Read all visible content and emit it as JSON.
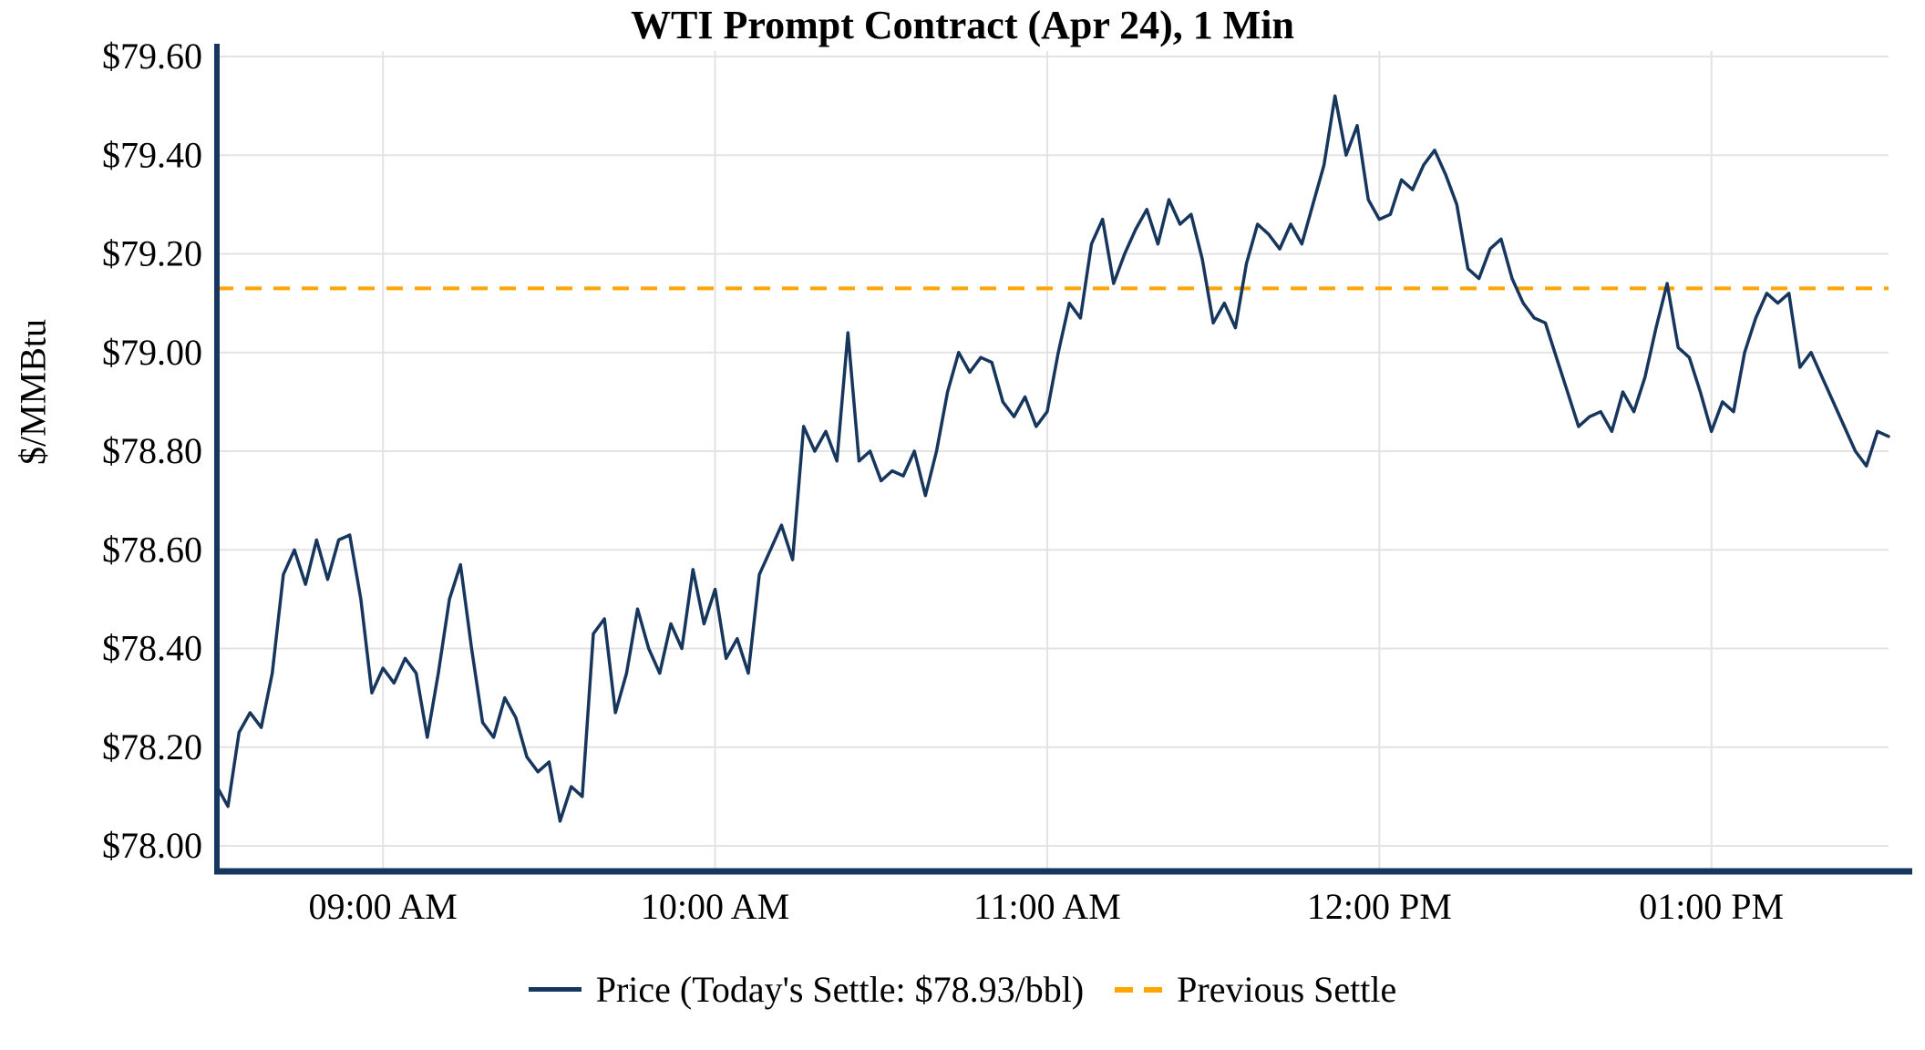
{
  "chart": {
    "title": "WTI Prompt Contract (Apr 24), 1 Min",
    "y_axis_label": "$/MMBtu",
    "legend": {
      "price_label": "Price (Today's Settle: $78.93/bbl)",
      "settle_label": "Previous Settle"
    },
    "colors": {
      "price_line": "#17365d",
      "settle_line": "#ffa500",
      "grid": "#e3e3e3",
      "axis": "#17365d",
      "text": "#000000"
    }
  },
  "chart_data": {
    "type": "line",
    "title": "WTI Prompt Contract (Apr 24), 1 Min",
    "xlabel": "",
    "ylabel": "$/MMBtu",
    "ylim": [
      78.0,
      79.6
    ],
    "y_ticks": [
      78.0,
      78.2,
      78.4,
      78.6,
      78.8,
      79.0,
      79.2,
      79.4,
      79.6
    ],
    "x_ticks": [
      {
        "label": "09:00 AM",
        "minutes": 540
      },
      {
        "label": "10:00 AM",
        "minutes": 600
      },
      {
        "label": "11:00 AM",
        "minutes": 660
      },
      {
        "label": "12:00 PM",
        "minutes": 720
      },
      {
        "label": "01:00 PM",
        "minutes": 780
      }
    ],
    "x_start_minutes": 510,
    "x_interval_minutes": 2,
    "grid": true,
    "legend_position": "bottom",
    "previous_settle": 79.13,
    "todays_settle": 78.93,
    "series": [
      {
        "name": "Price",
        "values": [
          78.12,
          78.08,
          78.23,
          78.27,
          78.24,
          78.35,
          78.55,
          78.6,
          78.53,
          78.62,
          78.54,
          78.62,
          78.63,
          78.5,
          78.31,
          78.36,
          78.33,
          78.38,
          78.35,
          78.22,
          78.35,
          78.5,
          78.57,
          78.4,
          78.25,
          78.22,
          78.3,
          78.26,
          78.18,
          78.15,
          78.17,
          78.05,
          78.12,
          78.1,
          78.43,
          78.46,
          78.27,
          78.35,
          78.48,
          78.4,
          78.35,
          78.45,
          78.4,
          78.56,
          78.45,
          78.52,
          78.38,
          78.42,
          78.35,
          78.55,
          78.6,
          78.65,
          78.58,
          78.85,
          78.8,
          78.84,
          78.78,
          79.04,
          78.78,
          78.8,
          78.74,
          78.76,
          78.75,
          78.8,
          78.71,
          78.8,
          78.92,
          79.0,
          78.96,
          78.99,
          78.98,
          78.9,
          78.87,
          78.91,
          78.85,
          78.88,
          79.0,
          79.1,
          79.07,
          79.22,
          79.27,
          79.14,
          79.2,
          79.25,
          79.29,
          79.22,
          79.31,
          79.26,
          79.28,
          79.19,
          79.06,
          79.1,
          79.05,
          79.18,
          79.26,
          79.24,
          79.21,
          79.26,
          79.22,
          79.3,
          79.38,
          79.52,
          79.4,
          79.46,
          79.31,
          79.27,
          79.28,
          79.35,
          79.33,
          79.38,
          79.41,
          79.36,
          79.3,
          79.17,
          79.15,
          79.21,
          79.23,
          79.15,
          79.1,
          79.07,
          79.06,
          78.99,
          78.92,
          78.85,
          78.87,
          78.88,
          78.84,
          78.92,
          78.88,
          78.95,
          79.05,
          79.14,
          79.01,
          78.99,
          78.92,
          78.84,
          78.9,
          78.88,
          79.0,
          79.07,
          79.12,
          79.1,
          79.12,
          78.97,
          79.0,
          78.95,
          78.9,
          78.85,
          78.8,
          78.77,
          78.84,
          78.83
        ]
      }
    ]
  }
}
